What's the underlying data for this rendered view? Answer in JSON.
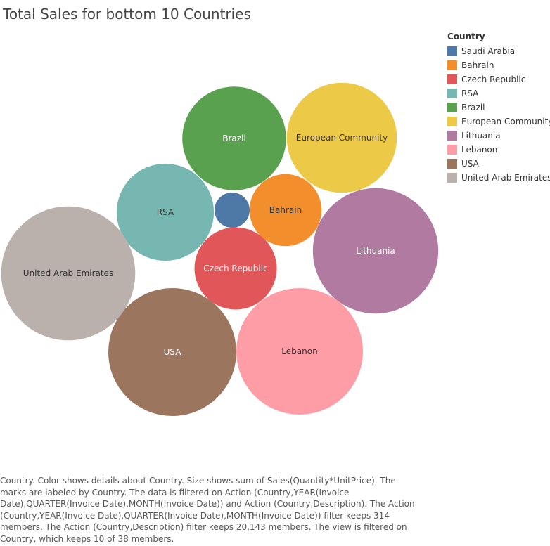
{
  "chart_data": {
    "type": "packed-bubble",
    "title": "Total Sales for bottom 10 Countries",
    "legend": {
      "title": "Country",
      "placement": "right",
      "items": [
        "Saudi Arabia",
        "Bahrain",
        "Czech Republic",
        "RSA",
        "Brazil",
        "European Community",
        "Lithuania",
        "Lebanon",
        "USA",
        "United Arab Emirates"
      ]
    },
    "series": [
      {
        "name": "Saudi Arabia",
        "color": "#4e79a7",
        "label": "",
        "size": 2500
      },
      {
        "name": "Bahrain",
        "color": "#f28e2b",
        "label": "Bahrain",
        "size": 10500
      },
      {
        "name": "Czech Republic",
        "color": "#e15759",
        "label": "Czech Republic",
        "size": 13700
      },
      {
        "name": "RSA",
        "color": "#76b7b2",
        "label": "RSA",
        "size": 19100
      },
      {
        "name": "Brazil",
        "color": "#59a14f",
        "label": "Brazil",
        "size": 21800
      },
      {
        "name": "European Community",
        "color": "#edc948",
        "label": "European Community",
        "size": 24500
      },
      {
        "name": "Lithuania",
        "color": "#b07aa1",
        "label": "Lithuania",
        "size": 31800
      },
      {
        "name": "Lebanon",
        "color": "#ff9da7",
        "label": "Lebanon",
        "size": 32400
      },
      {
        "name": "USA",
        "color": "#9c755f",
        "label": "USA",
        "size": 33100
      },
      {
        "name": "United Arab Emirates",
        "color": "#bab0ac",
        "label": "United Arab Emirates",
        "size": 36300
      }
    ]
  },
  "caption": "Country.  Color shows details about Country.  Size shows sum of Sales(Quantity*UnitPrice).  The marks are labeled by Country. The data is filtered on Action (Country,YEAR(Invoice Date),QUARTER(Invoice Date),MONTH(Invoice Date)) and Action (Country,Description). The Action (Country,YEAR(Invoice Date),QUARTER(Invoice Date),MONTH(Invoice Date)) filter keeps 314 members. The Action (Country,Description) filter keeps 20,143 members. The view is filtered on Country, which keeps 10 of 38 members."
}
